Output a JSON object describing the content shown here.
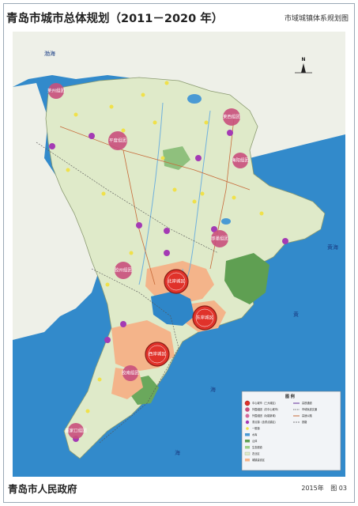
{
  "header": {
    "title": "青岛市城市总体规划（2011－2020 年）",
    "subtitle": "市域城镇体系规划图"
  },
  "footer": {
    "issuer": "青岛市人民政府",
    "year": "2015年",
    "figure": "图 03"
  },
  "map": {
    "north_label": "N",
    "sea_labels": [
      "渤海",
      "黄海",
      "黄",
      "海",
      "海"
    ],
    "cities": [
      {
        "label": "莱州组团",
        "kind": "outer"
      },
      {
        "label": "平度组团",
        "kind": "outer"
      },
      {
        "label": "莱西组团",
        "kind": "outer"
      },
      {
        "label": "海阳组团",
        "kind": "outer"
      },
      {
        "label": "即墨组团",
        "kind": "outer"
      },
      {
        "label": "胶州组团",
        "kind": "outer"
      },
      {
        "label": "北岸城区",
        "kind": "central"
      },
      {
        "label": "东岸城区",
        "kind": "central"
      },
      {
        "label": "西岸城区",
        "kind": "central"
      },
      {
        "label": "胶南组团",
        "kind": "outer"
      },
      {
        "label": "董家口组团",
        "kind": "outer"
      }
    ],
    "colors": {
      "sea": "#2b83c6",
      "land": "#dde9c8",
      "urban": "#f4b48a",
      "city_outer": "#c94f7c",
      "city_central": "#e0322a",
      "town": "#a43ab4",
      "village": "#f0e14a"
    },
    "legend": {
      "title": "图 例",
      "items": [
        "中心城市（三大城区）",
        "外围组团（次中心城市）",
        "外围组团（功能新城）",
        "重点镇（含重点镇区）",
        "一般镇",
        "水库",
        "山体",
        "生态廊道",
        "农业区",
        "城镇建设区"
      ],
      "items_right": [
        "高铁通道",
        "市域轨道交通",
        "高速公路",
        "铁路"
      ]
    }
  }
}
